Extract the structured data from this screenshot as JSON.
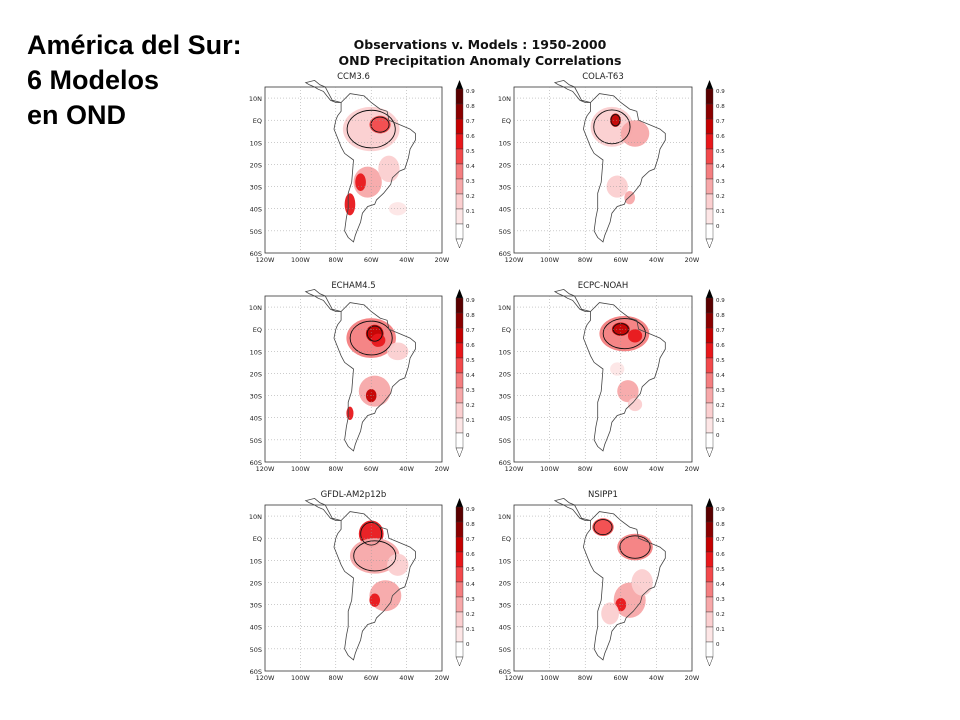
{
  "slide": {
    "title_lines": [
      "América del Sur:",
      "6 Modelos",
      "en OND"
    ]
  },
  "figure": {
    "title_line1": "Observations v. Models : 1950-2000",
    "title_line2": "OND Precipitation Anomaly Correlations"
  },
  "panels": [
    {
      "name": "CCM3.6"
    },
    {
      "name": "COLA-T63"
    },
    {
      "name": "ECHAM4.5"
    },
    {
      "name": "ECPC-NOAH"
    },
    {
      "name": "GFDL-AM2p12b"
    },
    {
      "name": "NSIPP1"
    }
  ],
  "axes": {
    "lat_ticks": [
      "10N",
      "EQ",
      "10S",
      "20S",
      "30S",
      "40S",
      "50S",
      "60S"
    ],
    "lon_ticks": [
      "120W",
      "100W",
      "80W",
      "60W",
      "40W",
      "20W"
    ]
  },
  "colorbar": {
    "levels": [
      "0.9",
      "0.8",
      "0.7",
      "0.6",
      "0.5",
      "0.4",
      "0.3",
      "0.2",
      "0.1",
      "0"
    ],
    "colors": [
      "#5a0000",
      "#8b0000",
      "#c40000",
      "#e8171b",
      "#f2494b",
      "#f47e80",
      "#f7a8a9",
      "#fbcfd0",
      "#fde6e6",
      "#ffffff"
    ]
  },
  "colors": {
    "land_outline": "#555555",
    "contour": "#111111",
    "grid": "#888888"
  }
}
